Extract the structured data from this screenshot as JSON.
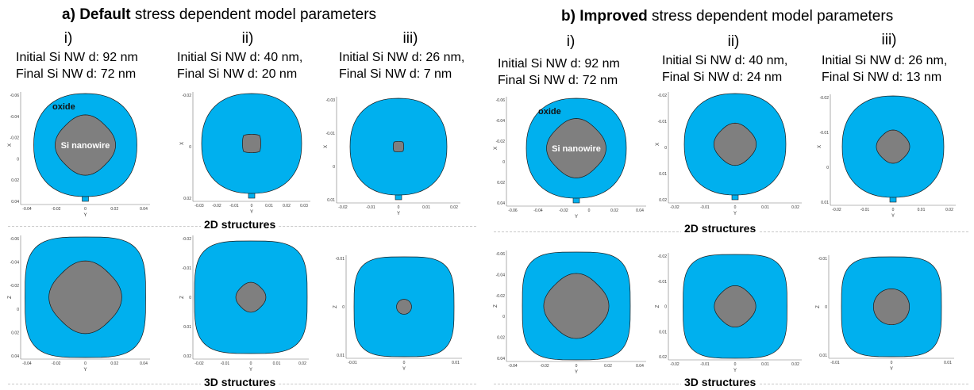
{
  "panels": [
    {
      "title_prefix": "a)",
      "title_bold": "Default",
      "title_rest": "stress dependent model parameters",
      "columns": [
        {
          "roman": "i)",
          "initial": "Initial Si NW d: 92 nm",
          "final": "Final Si NW d:  72 nm"
        },
        {
          "roman": "ii)",
          "initial": "Initial Si NW d: 40 nm,",
          "final": "Final Si NW d:  20 nm"
        },
        {
          "roman": "iii)",
          "initial": "Initial Si NW d: 26 nm,",
          "final": "Final Si NW d:  7 nm"
        }
      ],
      "row_labels": {
        "top": "2D structures",
        "bottom": "3D structures"
      }
    },
    {
      "title_prefix": "b)",
      "title_bold": "Improved",
      "title_rest": "stress dependent model parameters",
      "columns": [
        {
          "roman": "i)",
          "initial": "Initial Si NW d: 92 nm",
          "final": "Final Si NW d:  72 nm"
        },
        {
          "roman": "ii)",
          "initial": "Initial Si NW d: 40 nm,",
          "final": "Final Si NW d:  24 nm"
        },
        {
          "roman": "iii)",
          "initial": "Initial Si NW d: 26 nm,",
          "final": "Final Si NW d:  13 nm"
        }
      ],
      "row_labels": {
        "top": "2D structures",
        "bottom": "3D structures"
      }
    }
  ],
  "region_labels": {
    "oxide": "oxide",
    "silicon": "Si nanowire"
  },
  "axis_labels": {
    "vertical_2d": "X",
    "vertical_3d": "Z",
    "horizontal": "Y"
  },
  "colors": {
    "oxide": "#00b0ee",
    "silicon": "#7f7f7f",
    "outline": "#1a1a1a",
    "divider": "#c8c8c8"
  },
  "cross_sections": [
    {
      "id": "a-i-2d",
      "oxide_shape": "round-stem",
      "core_frac": 0.66,
      "core_shape": "diamond-round",
      "labeled": true,
      "y_ticks": [
        "-0.06",
        "-0.04",
        "-0.02",
        "0",
        "0.02",
        "0.04"
      ],
      "x_ticks": [
        "-0.04",
        "-0.02",
        "0",
        "0.02",
        "0.04"
      ]
    },
    {
      "id": "a-ii-2d",
      "oxide_shape": "round-stem",
      "core_frac": 0.29,
      "core_shape": "diamond",
      "labeled": false,
      "y_ticks": [
        "-0.02",
        "0",
        "0.02"
      ],
      "x_ticks": [
        "-0.03",
        "-0.02",
        "-0.01",
        "0",
        "0.01",
        "0.02",
        "0.03"
      ]
    },
    {
      "id": "a-iii-2d",
      "oxide_shape": "round-stem",
      "core_frac": 0.17,
      "core_shape": "diamond",
      "labeled": false,
      "y_ticks": [
        "-0.03",
        "-0.01",
        "0",
        "0.01"
      ],
      "x_ticks": [
        "-0.02",
        "-0.01",
        "0",
        "0.01",
        "0.02"
      ]
    },
    {
      "id": "a-i-3d",
      "oxide_shape": "squircle",
      "core_frac": 0.68,
      "core_shape": "diamond-round",
      "labeled": false,
      "y_ticks": [
        "-0.06",
        "-0.04",
        "-0.02",
        "0",
        "0.02",
        "0.04"
      ],
      "x_ticks": [
        "-0.04",
        "-0.02",
        "0",
        "0.02",
        "0.04"
      ]
    },
    {
      "id": "a-ii-3d",
      "oxide_shape": "squircle",
      "core_frac": 0.3,
      "core_shape": "diamond-round",
      "labeled": false,
      "y_ticks": [
        "-0.02",
        "-0.01",
        "0",
        "0.01",
        "0.02"
      ],
      "x_ticks": [
        "-0.02",
        "-0.01",
        "0",
        "0.01",
        "0.02"
      ]
    },
    {
      "id": "a-iii-3d",
      "oxide_shape": "squircle",
      "core_frac": 0.15,
      "core_shape": "circle",
      "labeled": false,
      "y_ticks": [
        "-0.01",
        "0",
        "0.01"
      ],
      "x_ticks": [
        "-0.01",
        "0",
        "0.01"
      ]
    },
    {
      "id": "b-i-2d",
      "oxide_shape": "round-stem",
      "core_frac": 0.67,
      "core_shape": "diamond-round",
      "labeled": true,
      "y_ticks": [
        "-0.06",
        "-0.04",
        "-0.02",
        "0",
        "0.02",
        "0.04"
      ],
      "x_ticks": [
        "-0.06",
        "-0.04",
        "-0.02",
        "0",
        "0.02",
        "0.04"
      ]
    },
    {
      "id": "b-ii-2d",
      "oxide_shape": "round-stem",
      "core_frac": 0.47,
      "core_shape": "diamond-round",
      "labeled": false,
      "y_ticks": [
        "-0.02",
        "-0.01",
        "0",
        "0.01",
        "0.02"
      ],
      "x_ticks": [
        "-0.02",
        "-0.01",
        "0",
        "0.01",
        "0.02"
      ]
    },
    {
      "id": "b-iii-2d",
      "oxide_shape": "round-stem",
      "core_frac": 0.37,
      "core_shape": "diamond-round",
      "labeled": false,
      "y_ticks": [
        "-0.02",
        "-0.01",
        "0",
        "0.01"
      ],
      "x_ticks": [
        "-0.02",
        "-0.01",
        "0",
        "0.01",
        "0.02"
      ]
    },
    {
      "id": "b-i-3d",
      "oxide_shape": "squircle",
      "core_frac": 0.68,
      "core_shape": "diamond-round",
      "labeled": false,
      "y_ticks": [
        "-0.06",
        "-0.04",
        "-0.02",
        "0",
        "0.02",
        "0.04"
      ],
      "x_ticks": [
        "-0.04",
        "-0.02",
        "0",
        "0.02",
        "0.04"
      ]
    },
    {
      "id": "b-ii-3d",
      "oxide_shape": "squircle",
      "core_frac": 0.45,
      "core_shape": "diamond-round",
      "labeled": false,
      "y_ticks": [
        "-0.02",
        "-0.01",
        "0",
        "0.01",
        "0.02"
      ],
      "x_ticks": [
        "-0.02",
        "-0.01",
        "0",
        "0.01",
        "0.02"
      ]
    },
    {
      "id": "b-iii-3d",
      "oxide_shape": "squircle",
      "core_frac": 0.36,
      "core_shape": "circle",
      "labeled": false,
      "y_ticks": [
        "-0.01",
        "0",
        "0.01"
      ],
      "x_ticks": [
        "-0.01",
        "0",
        "0.01"
      ]
    }
  ]
}
